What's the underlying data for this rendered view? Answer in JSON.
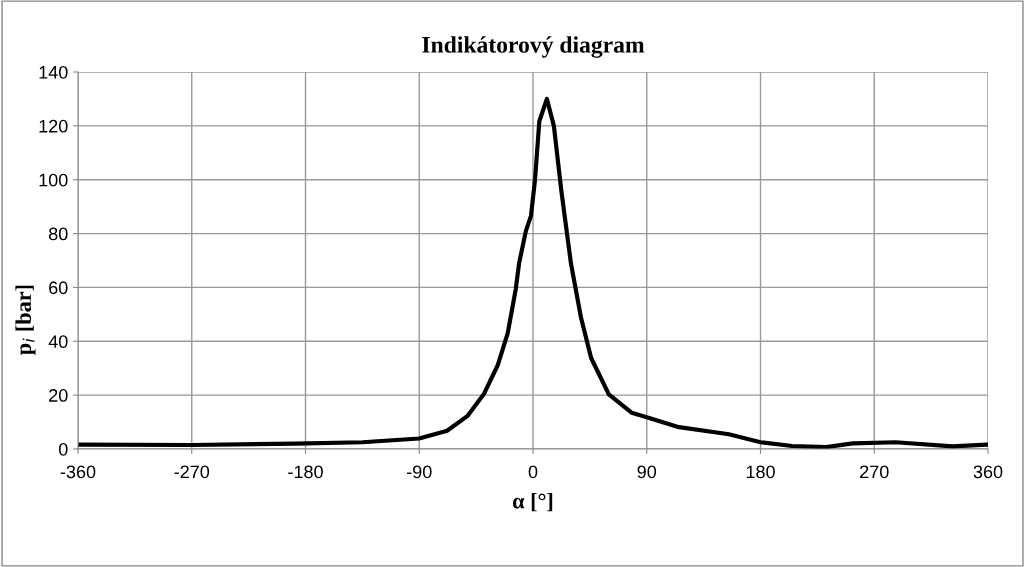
{
  "chart_data": {
    "type": "line",
    "title": "Indikátorový diagram",
    "xlabel": "α [°]",
    "ylabel": "p$_{i}$ [bar]",
    "series": [
      {
        "color": "#000000",
        "x": [
          -360,
          -270,
          -188,
          -135,
          -90,
          -68,
          -52,
          -39,
          -28,
          -20,
          -13.6,
          -11,
          -5.6,
          -1.6,
          1.6,
          5,
          11,
          16.5,
          22.4,
          30,
          38,
          46,
          60,
          78,
          90,
          115.5,
          155,
          180,
          205,
          232,
          253,
          287,
          332,
          359,
          360
        ],
        "values": [
          1.6,
          1.5,
          2.0,
          2.5,
          3.9,
          6.8,
          12.2,
          20.3,
          31,
          43,
          59.5,
          69,
          81,
          86.6,
          100,
          121.7,
          130,
          120,
          96,
          69,
          48.7,
          33.8,
          20.3,
          13.5,
          11.8,
          8.1,
          5.5,
          2.5,
          1.1,
          0.7,
          2.1,
          2.5,
          1.0,
          1.6,
          1.6
        ]
      }
    ],
    "xlim": [
      -360,
      360
    ],
    "xticks": [
      -360,
      -270,
      -180,
      -90,
      0,
      90,
      180,
      270,
      360
    ],
    "ylim": [
      0,
      140
    ],
    "yticks": [
      0,
      20,
      40,
      60,
      80,
      100,
      120,
      140
    ],
    "grid": true,
    "marker": "none",
    "line_style": "solid"
  }
}
